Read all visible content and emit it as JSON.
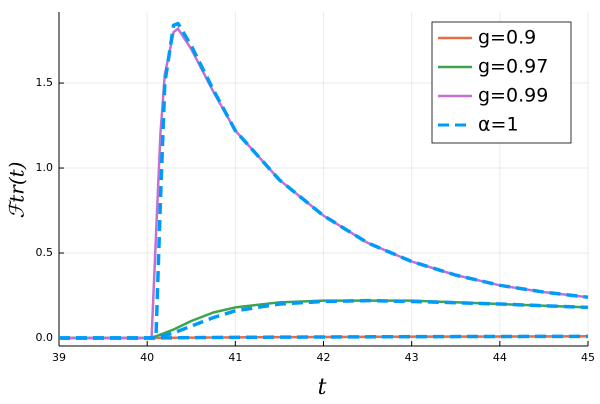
{
  "chart_data": {
    "type": "line",
    "xlabel": "t",
    "ylabel": "ℱtr(t)",
    "xlim": [
      39,
      45
    ],
    "ylim": [
      -0.047,
      1.918
    ],
    "xticks": [
      39,
      40,
      41,
      42,
      43,
      44,
      45
    ],
    "yticks": [
      {
        "value": 0,
        "label": "0.0"
      },
      0.5,
      {
        "value": 1,
        "label": "1.0"
      },
      1.5
    ],
    "grid": true,
    "legend": "top-right",
    "series": [
      {
        "name": "g=0.9",
        "color": "#e26f46",
        "dash": false,
        "x": [
          39,
          40,
          40.5,
          41,
          42,
          43,
          44,
          45
        ],
        "values": [
          0,
          0,
          0.002,
          0.004,
          0.006,
          0.008,
          0.009,
          0.01
        ]
      },
      {
        "name": "g=0.97",
        "color": "#3da44d",
        "dash": false,
        "x": [
          39,
          40,
          40.1,
          40.3,
          40.5,
          40.75,
          41,
          41.5,
          42,
          42.5,
          43,
          44,
          45
        ],
        "values": [
          0,
          0,
          0.01,
          0.05,
          0.1,
          0.15,
          0.18,
          0.21,
          0.22,
          0.22,
          0.22,
          0.2,
          0.18
        ]
      },
      {
        "name": "g=0.99",
        "color": "#c271d2",
        "dash": false,
        "x": [
          39,
          40,
          40.05,
          40.1,
          40.15,
          40.2,
          40.3,
          40.35,
          40.5,
          40.75,
          41,
          41.5,
          42,
          42.5,
          43,
          43.5,
          44,
          44.5,
          45
        ],
        "values": [
          0,
          0,
          0,
          0.6,
          1.2,
          1.55,
          1.8,
          1.82,
          1.7,
          1.45,
          1.22,
          0.93,
          0.72,
          0.56,
          0.45,
          0.37,
          0.31,
          0.27,
          0.24
        ]
      },
      {
        "name": "α=1",
        "color": "#009af9",
        "dash": true,
        "x": [
          39,
          40,
          40.1,
          40.15,
          40.2,
          40.3,
          40.35,
          40.5,
          40.75,
          41,
          41.5,
          42,
          42.5,
          43,
          43.5,
          44,
          44.5,
          45
        ],
        "values": [
          0,
          0,
          0,
          0.8,
          1.5,
          1.84,
          1.85,
          1.72,
          1.46,
          1.22,
          0.93,
          0.72,
          0.56,
          0.45,
          0.37,
          0.31,
          0.27,
          0.24
        ]
      },
      {
        "color": "#009af9",
        "dash": true,
        "x": [
          39,
          40,
          40.1,
          40.3,
          40.5,
          40.75,
          41,
          41.5,
          42,
          42.5,
          43,
          44,
          45
        ],
        "values": [
          0,
          0,
          0,
          0.03,
          0.07,
          0.12,
          0.16,
          0.2,
          0.215,
          0.22,
          0.215,
          0.2,
          0.18
        ]
      },
      {
        "color": "#009af9",
        "dash": true,
        "x": [
          39,
          40,
          40.5,
          41,
          42,
          43,
          44,
          45
        ],
        "values": [
          0,
          0,
          0.002,
          0.004,
          0.006,
          0.008,
          0.009,
          0.01
        ]
      }
    ]
  }
}
